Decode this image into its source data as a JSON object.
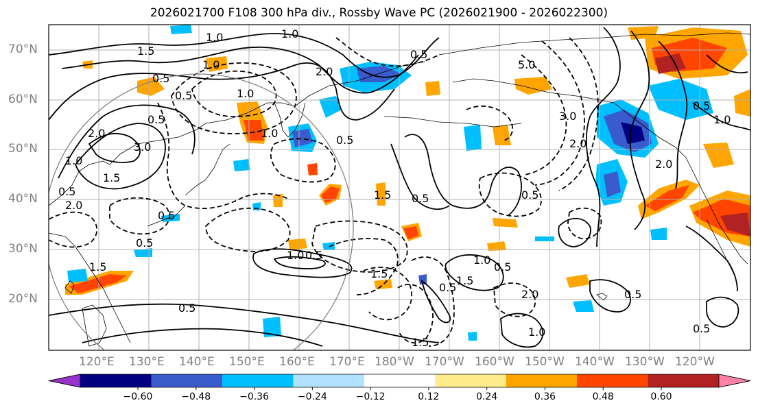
{
  "title": "2026021700 F108 300 hPa div., Rossby Wave PC (2026021900 - 2026022300)",
  "map": {
    "lat_labels": [
      "70°N",
      "60°N",
      "50°N",
      "40°N",
      "30°N",
      "20°N"
    ],
    "lon_labels": [
      "120°E",
      "130°E",
      "140°E",
      "150°E",
      "160°E",
      "170°E",
      "180°W",
      "170°W",
      "160°W",
      "150°W",
      "140°W",
      "130°W",
      "120°W"
    ],
    "contour_labels": [
      "1.5",
      "1.0",
      "0.5",
      "1.0",
      "0.5",
      "1.0",
      "2.0",
      "0.5",
      "0.5",
      "0.5",
      "1.0",
      "2.0",
      "1.5",
      "0.5",
      "1.0",
      "0.5",
      "3.0",
      "2.0",
      "0.5",
      "1.5",
      "1.0",
      "0.5",
      "0.5",
      "1.5",
      "0.5",
      "0.5",
      "1.5",
      "0.5",
      "1.0",
      "1.5",
      "2.0",
      "2.0",
      "1.0",
      "1.0",
      "3.0",
      "5.0",
      "2.0",
      "0.5",
      "1.0",
      "0.5",
      "0.5",
      "0.5",
      "1.5"
    ],
    "colors": {
      "neg_strong": "#000080",
      "neg_med": "#3a5bcc",
      "neg_light": "#00bfff",
      "neg_pale": "#b0e2ff",
      "pos_pale": "#ffec8b",
      "pos_light": "#ffa500",
      "pos_med": "#ff4500",
      "pos_strong": "#b22222",
      "pos_max": "#ff82ab",
      "neg_max": "#9932cc"
    }
  },
  "colorbar": {
    "tick_labels": [
      "−0.60",
      "−0.48",
      "−0.36",
      "−0.24",
      "−0.12",
      "0.12",
      "0.24",
      "0.36",
      "0.48",
      "0.60"
    ],
    "segments": [
      "#9932cc",
      "#000080",
      "#3a5bcc",
      "#00bfff",
      "#b0e2ff",
      "#ffffff",
      "#ffec8b",
      "#ffa500",
      "#ff4500",
      "#b22222",
      "#ff82ab"
    ]
  }
}
